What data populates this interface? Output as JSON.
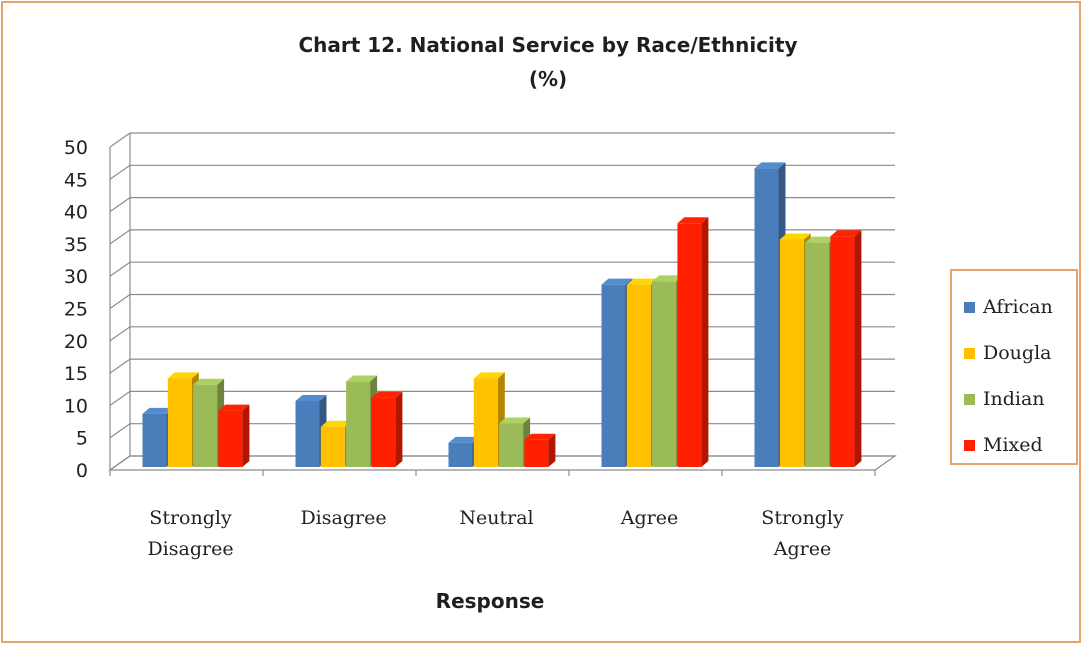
{
  "chart_data": {
    "type": "bar",
    "title": "Chart 12. National Service by Race/Ethnicity",
    "subtitle": "(%)",
    "xlabel": "Response",
    "ylabel": "",
    "categories": [
      [
        "Strongly",
        "Disagree"
      ],
      [
        "Disagree"
      ],
      [
        "Neutral"
      ],
      [
        "Agree"
      ],
      [
        "Strongly",
        "Agree"
      ]
    ],
    "ylim": [
      0,
      50
    ],
    "yticks": [
      "0",
      "5",
      "10",
      "15",
      "20",
      "25",
      "30",
      "35",
      "40",
      "45",
      "50"
    ],
    "grid": true,
    "legend_position": "right",
    "series": [
      {
        "name": "African",
        "color": "#4a7ebb",
        "values": [
          9,
          11,
          4.5,
          29,
          47
        ]
      },
      {
        "name": "Dougla",
        "color": "#ffc000",
        "values": [
          14.5,
          7,
          14.5,
          29,
          36
        ]
      },
      {
        "name": "Indian",
        "color": "#9bbb59",
        "values": [
          13.5,
          14,
          7.5,
          29.5,
          35.5
        ]
      },
      {
        "name": "Mixed",
        "color": "#ff2000",
        "values": [
          9.5,
          11.5,
          5,
          38.5,
          36.5
        ]
      }
    ]
  }
}
